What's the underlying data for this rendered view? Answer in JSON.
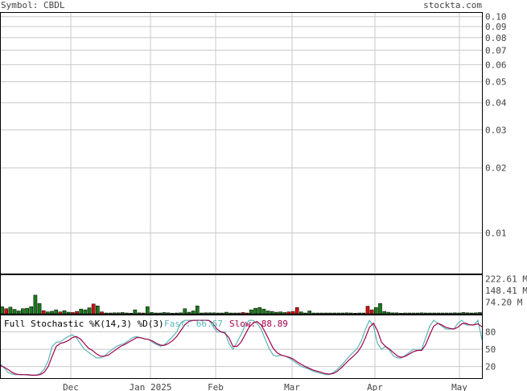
{
  "header": {
    "symbol_text": "Symbol: CBDL",
    "site": "stockta.com"
  },
  "colors": {
    "frame": "#000000",
    "grid": "#c8c8c8",
    "label": "#444444",
    "vol_up": "#1a7a1a",
    "vol_down": "#d01010",
    "fast_line": "#5bb5b5",
    "slow_line": "#a0004a"
  },
  "chart_data": [
    {
      "type": "line",
      "panel": "price",
      "y_scale": "log",
      "ylim": [
        0.0065,
        0.105
      ],
      "yticks": [
        0.1,
        0.09,
        0.08,
        0.07,
        0.06,
        0.05,
        0.04,
        0.03,
        0.02,
        0.01
      ],
      "ytick_labels": [
        "0.10",
        "0.09",
        "0.08",
        "0.07",
        "0.06",
        "0.05",
        "0.04",
        "0.03",
        "0.02",
        "0.01"
      ],
      "x_labels": [
        "Dec",
        "Jan 2025",
        "Feb",
        "Mar",
        "Apr",
        "May"
      ],
      "grid": true,
      "series": []
    },
    {
      "type": "bar",
      "panel": "volume",
      "ylim": [
        0,
        250
      ],
      "yticks": [
        222.61,
        148.41,
        74.2
      ],
      "ytick_labels": [
        "222.61 M",
        "148.41 M",
        "74.20 M"
      ],
      "values": [
        45,
        32,
        42,
        28,
        18,
        32,
        35,
        45,
        118,
        65,
        20,
        12,
        16,
        25,
        12,
        20,
        10,
        8,
        15,
        30,
        25,
        38,
        62,
        50,
        12,
        5,
        5,
        6,
        6,
        8,
        5,
        4,
        25,
        6,
        5,
        45,
        8,
        5,
        5,
        8,
        6,
        4,
        5,
        6,
        32,
        10,
        18,
        50,
        5,
        6,
        6,
        6,
        5,
        5,
        10,
        5,
        5,
        5,
        8,
        5,
        25,
        35,
        40,
        30,
        18,
        15,
        10,
        12,
        8,
        12,
        15,
        40,
        12,
        5,
        18,
        5,
        5,
        5,
        5,
        5,
        5,
        5,
        5,
        6,
        5,
        4,
        5,
        5,
        48,
        25,
        40,
        65,
        15,
        10,
        6,
        6,
        4,
        5,
        5,
        5,
        5,
        6,
        5,
        5,
        5,
        5,
        5,
        5,
        5,
        6,
        5,
        8,
        6,
        5,
        6,
        8
      ],
      "up": [
        1,
        0,
        1,
        1,
        1,
        1,
        1,
        1,
        1,
        1,
        0,
        1,
        1,
        1,
        0,
        1,
        1,
        0,
        0,
        1,
        1,
        1,
        0,
        1,
        0,
        1,
        1,
        1,
        1,
        1,
        1,
        1,
        1,
        1,
        0,
        1,
        1,
        1,
        1,
        1,
        1,
        1,
        1,
        1,
        1,
        1,
        1,
        1,
        1,
        1,
        1,
        1,
        1,
        1,
        1,
        1,
        1,
        1,
        0,
        0,
        1,
        1,
        1,
        1,
        1,
        1,
        1,
        1,
        1,
        0,
        0,
        0,
        1,
        1,
        1,
        1,
        1,
        1,
        1,
        1,
        1,
        1,
        1,
        1,
        1,
        1,
        1,
        1,
        0,
        0,
        1,
        1,
        1,
        1,
        1,
        1,
        1,
        1,
        1,
        1,
        1,
        1,
        1,
        1,
        1,
        1,
        1,
        1,
        1,
        1,
        1,
        1,
        1,
        1,
        1,
        1
      ]
    },
    {
      "type": "line",
      "panel": "stochastic",
      "title": "Full Stochastic %K(14,3) %D(3)",
      "fast_label": "Fast: 66.67",
      "slow_label": "Slow: 88.89",
      "ylim": [
        0,
        110
      ],
      "yticks": [
        80,
        50,
        20
      ],
      "ytick_labels": [
        "80",
        "50",
        "20"
      ],
      "series": [
        {
          "name": "Fast",
          "values": [
            25,
            18,
            10,
            7,
            6,
            6,
            6,
            5,
            5,
            5,
            8,
            15,
            30,
            55,
            62,
            63,
            68,
            72,
            75,
            70,
            60,
            50,
            45,
            40,
            35,
            35,
            38,
            45,
            50,
            55,
            58,
            60,
            65,
            70,
            72,
            70,
            68,
            67,
            62,
            58,
            55,
            58,
            65,
            72,
            80,
            95,
            100,
            100,
            100,
            100,
            100,
            100,
            100,
            90,
            80,
            80,
            80,
            60,
            50,
            62,
            75,
            90,
            100,
            100,
            95,
            85,
            68,
            52,
            40,
            38,
            40,
            38,
            35,
            30,
            25,
            20,
            18,
            15,
            12,
            10,
            8,
            6,
            6,
            10,
            15,
            22,
            30,
            38,
            45,
            52,
            65,
            85,
            100,
            90,
            60,
            50,
            55,
            48,
            38,
            35,
            35,
            40,
            45,
            50,
            48,
            50,
            70,
            90,
            100,
            95,
            90,
            85,
            85,
            85,
            95,
            100,
            92,
            92,
            92,
            100,
            66.67
          ]
        },
        {
          "name": "Slow",
          "values": [
            22,
            19,
            15,
            10,
            7,
            6,
            6,
            6,
            5,
            5,
            6,
            10,
            20,
            38,
            55,
            60,
            62,
            65,
            70,
            72,
            68,
            60,
            52,
            48,
            42,
            38,
            38,
            40,
            45,
            50,
            55,
            58,
            62,
            66,
            70,
            70,
            68,
            67,
            64,
            60,
            57,
            57,
            60,
            65,
            72,
            82,
            92,
            98,
            100,
            100,
            100,
            100,
            100,
            95,
            85,
            80,
            78,
            70,
            55,
            55,
            62,
            75,
            88,
            95,
            98,
            92,
            80,
            66,
            52,
            44,
            40,
            38,
            36,
            33,
            28,
            24,
            20,
            17,
            14,
            12,
            10,
            8,
            7,
            8,
            12,
            18,
            25,
            32,
            38,
            45,
            55,
            70,
            88,
            95,
            82,
            62,
            55,
            50,
            44,
            38,
            36,
            38,
            42,
            46,
            48,
            48,
            58,
            75,
            90,
            95,
            92,
            88,
            86,
            85,
            88,
            94,
            95,
            92,
            92,
            94,
            88.89
          ]
        }
      ]
    }
  ]
}
